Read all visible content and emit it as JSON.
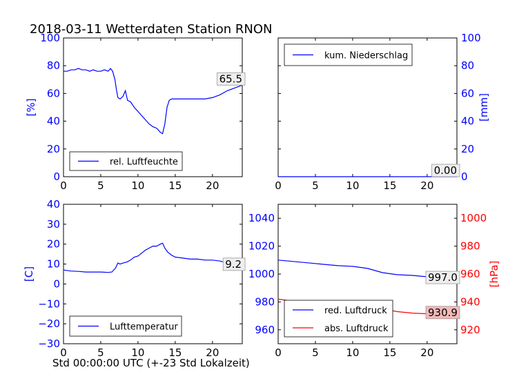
{
  "title": "2018-03-11 Wetterdaten Station RNON",
  "xlabel": "Std 00:00:00 UTC (+-23 Std Lokalzeit)",
  "chart_data": [
    {
      "id": "humidity",
      "type": "line",
      "ylabel": "[%]",
      "xlim": [
        0,
        24
      ],
      "ylim": [
        0,
        100
      ],
      "xticks": [
        0,
        5,
        10,
        15,
        20
      ],
      "yticks": [
        0,
        20,
        40,
        60,
        80,
        100
      ],
      "axis_color": "#0000ff",
      "legend": "lower-left",
      "annotation": "65.5",
      "series": [
        {
          "name": "rel. Luftfeuchte",
          "color": "#0000ff",
          "x": [
            0,
            0.5,
            1,
            1.5,
            2,
            2.5,
            3,
            3.5,
            4,
            4.5,
            5,
            5.5,
            6,
            6.3,
            6.6,
            6.9,
            7.1,
            7.3,
            7.6,
            8,
            8.3,
            8.6,
            9,
            9.5,
            10,
            10.5,
            11,
            11.5,
            12,
            12.5,
            13,
            13.3,
            13.6,
            13.9,
            14.2,
            14.5,
            15,
            16,
            17,
            18,
            19,
            20,
            21,
            22,
            23,
            24
          ],
          "y": [
            76,
            76,
            77,
            77,
            78,
            77,
            77,
            76,
            77,
            76,
            76,
            77,
            76,
            78,
            76,
            70,
            63,
            57,
            56,
            58,
            62,
            55,
            54,
            50,
            47,
            44,
            41,
            38,
            36,
            35,
            32,
            31,
            38,
            50,
            55,
            56,
            56,
            56,
            56,
            56,
            56,
            57,
            59,
            62,
            64,
            66
          ]
        }
      ]
    },
    {
      "id": "precip",
      "type": "line",
      "ylabel": "[mm]",
      "xlim": [
        0,
        24
      ],
      "ylim": [
        0,
        100
      ],
      "xticks": [
        0,
        5,
        10,
        15,
        20
      ],
      "yticks": [
        0,
        20,
        40,
        60,
        80,
        100
      ],
      "axis_color": "#0000ff",
      "legend": "upper-left",
      "annotation": "0.00",
      "series": [
        {
          "name": "kum. Niederschlag",
          "color": "#0000ff",
          "x": [
            0,
            24
          ],
          "y": [
            0,
            0
          ]
        }
      ]
    },
    {
      "id": "temperature",
      "type": "line",
      "ylabel": "[C]",
      "xlim": [
        0,
        24
      ],
      "ylim": [
        -30,
        40
      ],
      "xticks": [
        0,
        5,
        10,
        15,
        20
      ],
      "yticks": [
        -30,
        -20,
        -10,
        0,
        10,
        20,
        30,
        40
      ],
      "axis_color": "#0000ff",
      "legend": "lower-left",
      "annotation": "9.2",
      "series": [
        {
          "name": "Lufttemperatur",
          "color": "#0000ff",
          "x": [
            0,
            1,
            2,
            3,
            4,
            5,
            6,
            6.5,
            7,
            7.3,
            7.6,
            8,
            8.5,
            9,
            9.5,
            10,
            10.5,
            11,
            11.5,
            12,
            12.5,
            13,
            13.3,
            13.6,
            14,
            14.5,
            15,
            16,
            17,
            18,
            19,
            20,
            21,
            22,
            23,
            24
          ],
          "y": [
            7,
            6.5,
            6.3,
            6,
            6,
            6,
            5.8,
            6,
            8,
            10.5,
            10,
            10.5,
            11,
            12,
            13.5,
            14,
            15.5,
            17,
            18,
            19,
            19,
            20,
            20.5,
            18,
            16,
            14.5,
            13.5,
            13,
            12.5,
            12.5,
            12,
            12,
            11.5,
            10.5,
            10,
            9.2
          ]
        }
      ]
    },
    {
      "id": "pressure",
      "type": "line",
      "ylabel": "[hPa]",
      "xlim": [
        0,
        24
      ],
      "ylim": [
        950,
        1050
      ],
      "xticks": [
        0,
        5,
        10,
        15,
        20
      ],
      "yticks": [
        960,
        980,
        1000,
        1020,
        1040
      ],
      "y2lim": [
        910,
        1010
      ],
      "y2ticks": [
        920,
        940,
        960,
        980,
        1000
      ],
      "axis_color": "#0000ff",
      "axis2_color": "#ff0000",
      "legend": "lower-left",
      "annotation": "997.0",
      "annotation2": "930.9",
      "series": [
        {
          "name": "red. Luftdruck",
          "color": "#0000ff",
          "axis": "left",
          "x": [
            0,
            2,
            4,
            6,
            8,
            10,
            12,
            14,
            16,
            18,
            20,
            22,
            24
          ],
          "y": [
            1010,
            1009,
            1008,
            1007,
            1006,
            1005.5,
            1004,
            1001,
            999.5,
            999,
            998,
            997.5,
            997
          ]
        },
        {
          "name": "abs. Luftdruck",
          "color": "#ff0000",
          "axis": "right",
          "x": [
            0,
            2,
            4,
            6,
            8,
            10,
            12,
            14,
            16,
            18,
            20,
            22,
            24
          ],
          "y": [
            942,
            940.5,
            939.5,
            938,
            938.5,
            938,
            937,
            935,
            933,
            932,
            931.5,
            931,
            930.9
          ]
        }
      ]
    }
  ]
}
